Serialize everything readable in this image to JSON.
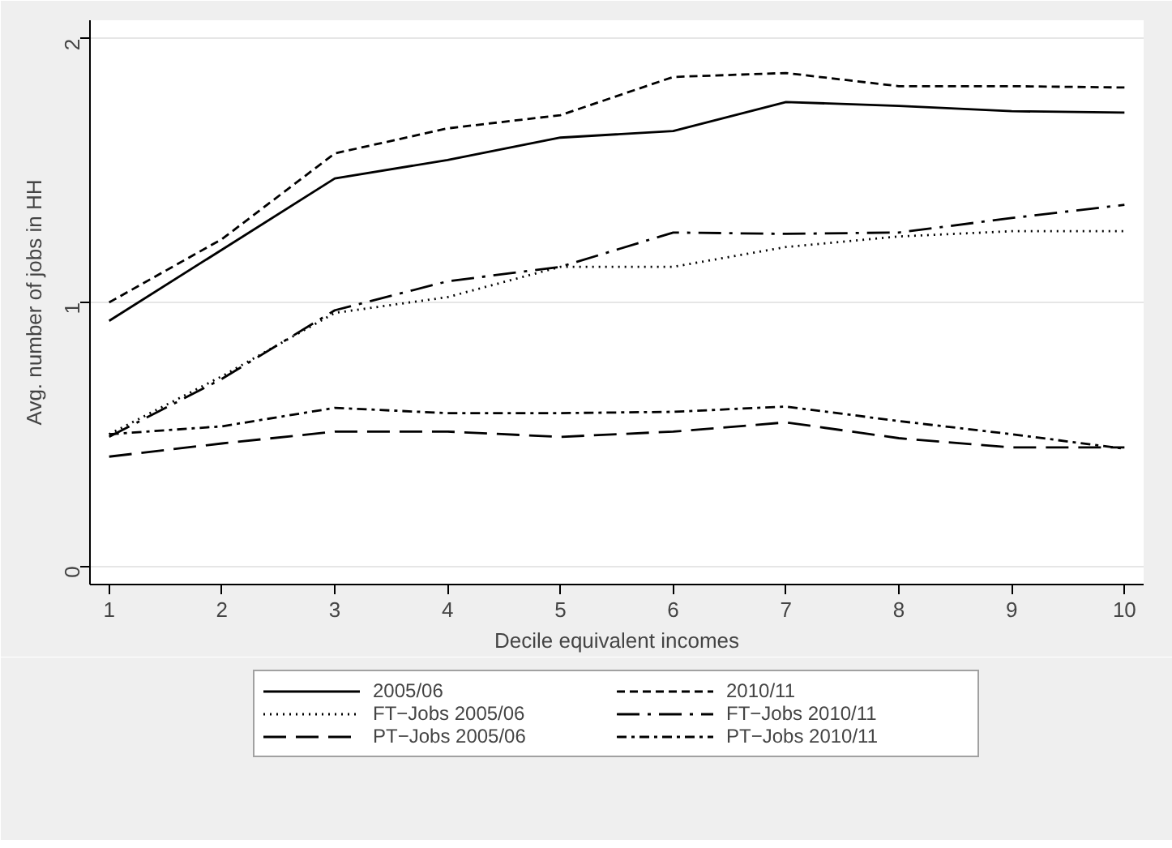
{
  "chart_data": {
    "type": "line",
    "xlabel": "Decile equivalent incomes",
    "ylabel": "Avg. number of jobs in HH",
    "x": [
      1,
      2,
      3,
      4,
      5,
      6,
      7,
      8,
      9,
      10
    ],
    "series": [
      {
        "name": "2005/06",
        "color": "#000000",
        "line_style": "solid",
        "values": [
          0.93,
          1.2,
          1.47,
          1.54,
          1.625,
          1.65,
          1.76,
          1.745,
          1.725,
          1.72
        ]
      },
      {
        "name": "2010/11",
        "color": "#000000",
        "line_style": "dashed",
        "values": [
          1.0,
          1.24,
          1.565,
          1.66,
          1.71,
          1.855,
          1.87,
          1.82,
          1.82,
          1.815
        ]
      },
      {
        "name": "FT−Jobs 2005/06",
        "color": "#000000",
        "line_style": "dotted",
        "values": [
          0.5,
          0.72,
          0.96,
          1.02,
          1.135,
          1.135,
          1.21,
          1.25,
          1.27,
          1.27
        ]
      },
      {
        "name": "FT−Jobs 2010/11",
        "color": "#000000",
        "line_style": "longdashdot",
        "values": [
          0.49,
          0.71,
          0.97,
          1.08,
          1.135,
          1.265,
          1.26,
          1.265,
          1.32,
          1.37
        ]
      },
      {
        "name": "PT−Jobs 2005/06",
        "color": "#000000",
        "line_style": "longdash",
        "values": [
          0.415,
          0.465,
          0.51,
          0.51,
          0.49,
          0.51,
          0.545,
          0.485,
          0.45,
          0.45
        ]
      },
      {
        "name": "PT−Jobs 2010/11",
        "color": "#000000",
        "line_style": "dashdot",
        "values": [
          0.5,
          0.53,
          0.6,
          0.58,
          0.58,
          0.585,
          0.605,
          0.55,
          0.5,
          0.445
        ]
      }
    ],
    "xlim": [
      0.83,
      10.17
    ],
    "ylim": [
      -0.07,
      2.07
    ],
    "xticks": [
      1,
      2,
      3,
      4,
      5,
      6,
      7,
      8,
      9,
      10
    ],
    "yticks": [
      0,
      1,
      2
    ],
    "grid": "y",
    "legend": "bottom"
  }
}
